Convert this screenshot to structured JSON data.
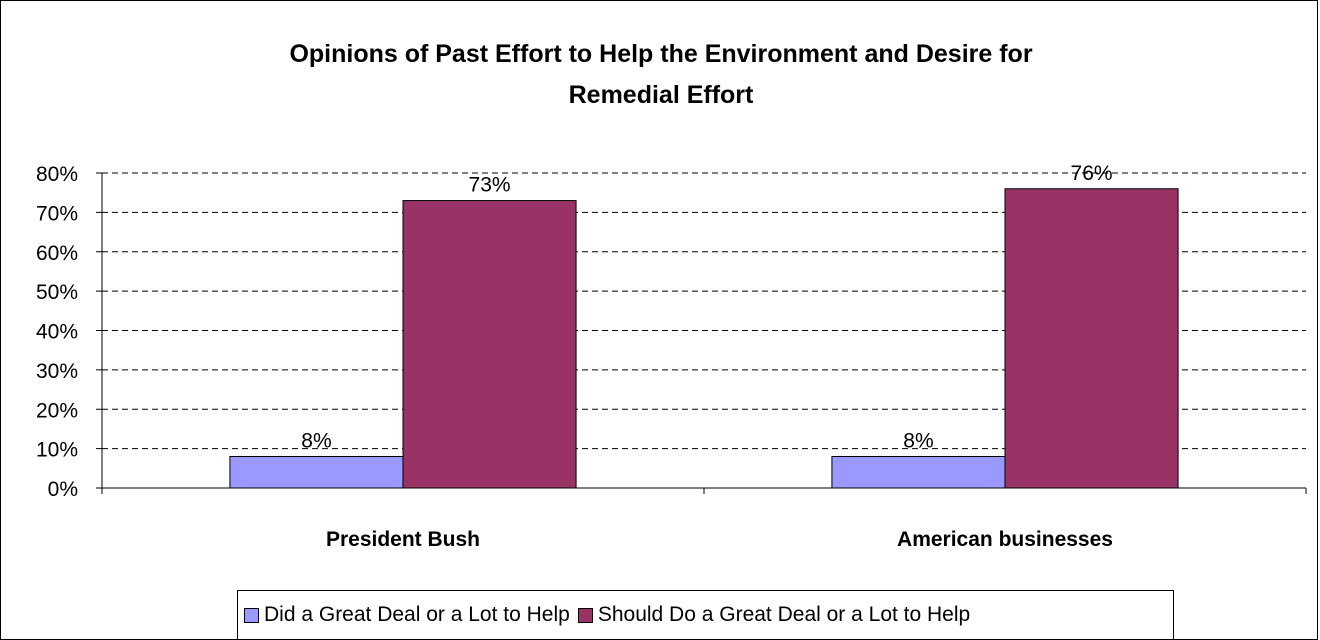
{
  "colors": {
    "series1": "#9999ff",
    "series2": "#993366",
    "grid": "#000000",
    "axis": "#000000"
  },
  "chart_data": {
    "type": "bar",
    "title_lines": [
      "Opinions of Past Effort to Help the Environment and Desire for",
      "Remedial Effort"
    ],
    "categories": [
      "President Bush",
      "American businesses"
    ],
    "series": [
      {
        "name": "Did a Great Deal or a Lot to Help",
        "values": [
          8,
          8
        ],
        "labels": [
          "8%",
          "8%"
        ]
      },
      {
        "name": "Should Do a Great Deal or a Lot to Help",
        "values": [
          73,
          76
        ],
        "labels": [
          "73%",
          "76%"
        ]
      }
    ],
    "ylim": [
      0,
      80
    ],
    "yticks": [
      0,
      10,
      20,
      30,
      40,
      50,
      60,
      70,
      80
    ],
    "ytick_labels": [
      "0%",
      "10%",
      "20%",
      "30%",
      "40%",
      "50%",
      "60%",
      "70%",
      "80%"
    ],
    "grid": true,
    "grid_style": "dashed",
    "legend_position": "bottom"
  }
}
